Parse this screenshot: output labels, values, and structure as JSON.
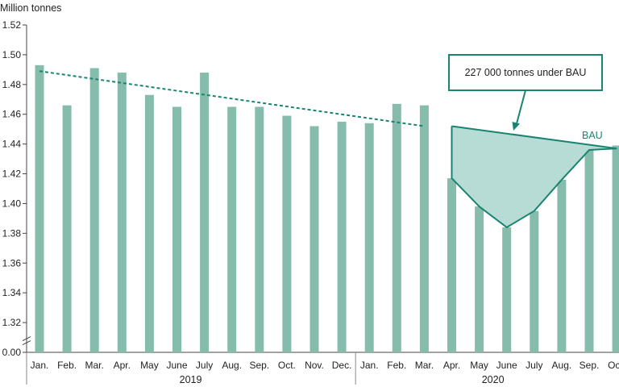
{
  "colors": {
    "bar": "#86bcab",
    "line": "#198571",
    "area": "#b3d9d3",
    "axis": "#444444"
  },
  "chart_data": {
    "type": "bar",
    "ylabel": "Million tonnes",
    "ylim": [
      1.3,
      1.52
    ],
    "axis_break": true,
    "yticks": [
      "0.00",
      "1.32",
      "1.34",
      "1.36",
      "1.38",
      "1.40",
      "1.42",
      "1.44",
      "1.46",
      "1.48",
      "1.50",
      "1.52"
    ],
    "categories": [
      "Jan.",
      "Feb.",
      "Mar.",
      "Apr.",
      "May",
      "June",
      "July",
      "Aug.",
      "Sep.",
      "Oct.",
      "Nov.",
      "Dec.",
      "Jan.",
      "Feb.",
      "Mar.",
      "Apr.",
      "May",
      "June",
      "July",
      "Aug.",
      "Sep.",
      "Oct."
    ],
    "groups": [
      {
        "label": "2019",
        "count": 12
      },
      {
        "label": "2020",
        "count": 10
      }
    ],
    "series": [
      {
        "type": "bar",
        "values": [
          1.493,
          1.466,
          1.491,
          1.488,
          1.473,
          1.465,
          1.488,
          1.465,
          1.465,
          1.459,
          1.452,
          1.455,
          1.454,
          1.467,
          1.466,
          1.417,
          1.398,
          1.384,
          1.395,
          1.416,
          1.436,
          1.439
        ]
      },
      {
        "type": "line",
        "style": "dashed",
        "x_from": "Jan. 2019",
        "x_to": "Mar. 2020",
        "y_from": 1.489,
        "y_to": 1.452
      },
      {
        "name": "BAU",
        "type": "line",
        "style": "solid",
        "x_from": "Apr. 2020",
        "x_to": "Oct. 2020",
        "y_from": 1.452,
        "y_to": 1.437
      },
      {
        "type": "line",
        "style": "solid",
        "points": [
          [
            "Apr. 2020",
            1.452
          ],
          [
            "Apr. 2020",
            1.417
          ],
          [
            "May 2020",
            1.398
          ],
          [
            "June 2020",
            1.384
          ],
          [
            "July 2020",
            1.395
          ],
          [
            "Aug. 2020",
            1.416
          ],
          [
            "Sep. 2020",
            1.436
          ],
          [
            "Oct. 2020",
            1.437
          ]
        ]
      }
    ],
    "annotations": [
      {
        "text": "227 000 tonnes under BAU"
      }
    ],
    "grid": false
  }
}
